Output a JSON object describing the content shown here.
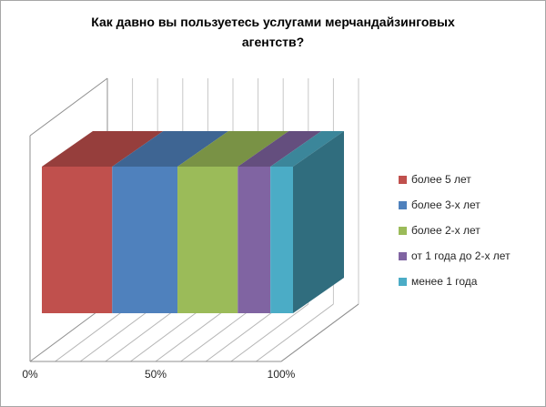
{
  "chart_data": {
    "type": "bar",
    "variant": "3d-horizontal-100%-stacked",
    "title": "Как давно вы пользуетесь услугами мерчандайзинговых агентств?",
    "categories": [
      ""
    ],
    "series": [
      {
        "name": "более 5 лет",
        "values": [
          28
        ],
        "color": "#C0504D"
      },
      {
        "name": "более 3-х лет",
        "values": [
          26
        ],
        "color": "#4F81BD"
      },
      {
        "name": "более 2-х лет",
        "values": [
          24
        ],
        "color": "#9BBB59"
      },
      {
        "name": "от 1 года до 2-х лет",
        "values": [
          13
        ],
        "color": "#8064A2"
      },
      {
        "name": "менее 1 года",
        "values": [
          9
        ],
        "color": "#4BACC6"
      }
    ],
    "value_axis": {
      "min": 0,
      "max": 100,
      "ticks": [
        {
          "label": "0%",
          "value": 0
        },
        {
          "label": "50%",
          "value": 50
        },
        {
          "label": "100%",
          "value": 100
        }
      ],
      "gridline_step_pct": 10
    },
    "legend_position": "right",
    "grid": true
  }
}
